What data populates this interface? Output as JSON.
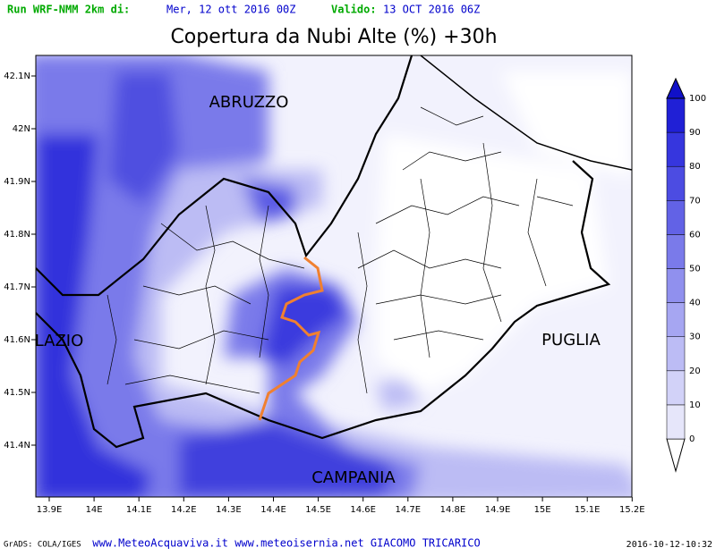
{
  "header": {
    "run_label": "Run WRF-NMM 2km di:",
    "run_date": "Mer, 12 ott 2016 00Z",
    "valid_label": "Valido:",
    "valid_date": "13 OCT 2016 06Z"
  },
  "title": "Copertura da Nubi Alte (%) +30h",
  "x_ticks": [
    "13.9E",
    "14E",
    "14.1E",
    "14.2E",
    "14.3E",
    "14.4E",
    "14.5E",
    "14.6E",
    "14.7E",
    "14.8E",
    "14.9E",
    "15E",
    "15.1E",
    "15.2E"
  ],
  "y_ticks": [
    "42.1N",
    "42N",
    "41.9N",
    "41.8N",
    "41.7N",
    "41.6N",
    "41.5N",
    "41.4N"
  ],
  "regions": [
    "ABRUZZO",
    "LAZIO",
    "PUGLIA",
    "CAMPANIA"
  ],
  "colorbar": {
    "levels": [
      0,
      10,
      20,
      30,
      40,
      50,
      60,
      70,
      80,
      90,
      100
    ],
    "colors": [
      "#ffffff",
      "#e6e6fa",
      "#d2d2f8",
      "#bcbcf5",
      "#a6a6f2",
      "#9090ee",
      "#7a7aea",
      "#6262e6",
      "#4c4ce2",
      "#3636de",
      "#2020d6",
      "#1010c8"
    ]
  },
  "footer": {
    "left": "GrADS: COLA/IGES",
    "center": "www.MeteoAcquaviva.it www.meteoisernia.net GIACOMO TRICARICO",
    "right": "2016-10-12-10:32"
  }
}
